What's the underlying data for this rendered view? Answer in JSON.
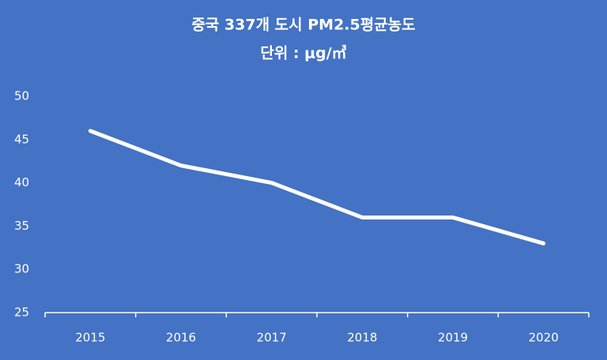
{
  "chart_data": {
    "type": "line",
    "title": "중국 337개 도시 PM2.5평균농도",
    "subtitle": "단위 : μg/㎥",
    "categories": [
      "2015",
      "2016",
      "2017",
      "2018",
      "2019",
      "2020"
    ],
    "values": [
      46,
      42,
      40,
      36,
      36,
      33
    ],
    "color": "#ffffff",
    "background": "#4472c4",
    "ylim": [
      25,
      50
    ],
    "yticks": [
      25,
      30,
      35,
      40,
      45,
      50
    ],
    "drop_lines": true
  }
}
